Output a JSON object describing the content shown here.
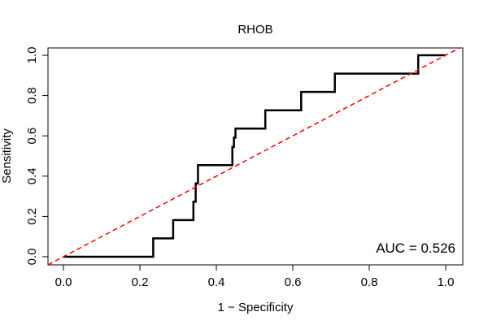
{
  "chart_data": {
    "type": "line",
    "title": "RHOB",
    "xlabel": "1 − Specificity",
    "ylabel": "Sensitivity",
    "xlim": [
      0,
      1
    ],
    "ylim": [
      0,
      1
    ],
    "x_ticks": [
      0.0,
      0.2,
      0.4,
      0.6,
      0.8,
      1.0
    ],
    "x_tick_labels": [
      "0.0",
      "0.2",
      "0.4",
      "0.6",
      "0.8",
      "1.0"
    ],
    "y_ticks": [
      0.0,
      0.2,
      0.4,
      0.6,
      0.8,
      1.0
    ],
    "y_tick_labels": [
      "0.0",
      "0.2",
      "0.4",
      "0.6",
      "0.8",
      "1.0"
    ],
    "grid": false,
    "annotation": "AUC = 0.526",
    "series": [
      {
        "color": "#000000",
        "style": "solid-step",
        "x": [
          0,
          0.235,
          0.235,
          0.287,
          0.287,
          0.34,
          0.34,
          0.346,
          0.346,
          0.352,
          0.352,
          0.442,
          0.442,
          0.446,
          0.446,
          0.45,
          0.45,
          0.528,
          0.528,
          0.622,
          0.622,
          0.71,
          0.71,
          0.928,
          0.928,
          1.0
        ],
        "y": [
          0,
          0,
          0.091,
          0.091,
          0.182,
          0.182,
          0.273,
          0.273,
          0.364,
          0.364,
          0.455,
          0.455,
          0.545,
          0.545,
          0.591,
          0.591,
          0.636,
          0.636,
          0.727,
          0.727,
          0.818,
          0.818,
          0.909,
          0.909,
          1.0,
          1.0
        ]
      },
      {
        "color": "#ff0000",
        "style": "dashed",
        "x": [
          -0.04,
          1.04
        ],
        "y": [
          -0.04,
          1.04
        ]
      }
    ]
  }
}
